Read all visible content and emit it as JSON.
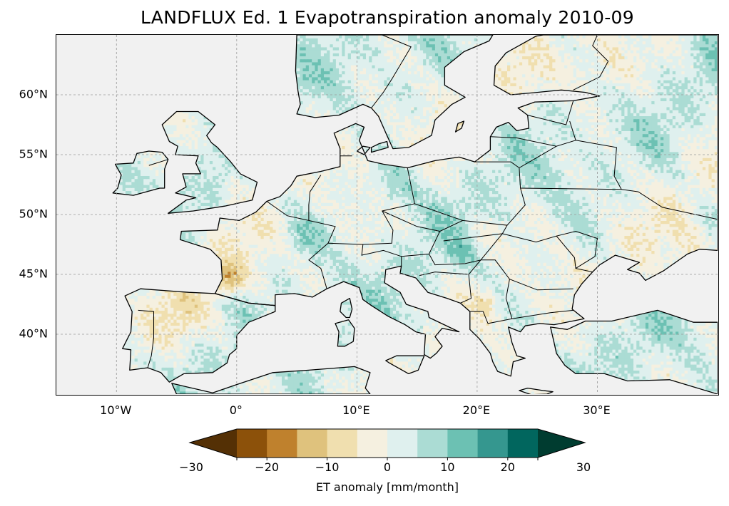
{
  "title": "LANDFLUX Ed. 1 Evapotranspiration anomaly 2010-09",
  "map": {
    "extent": {
      "lon_min": -15,
      "lon_max": 40,
      "lat_min": 35,
      "lat_max": 65
    },
    "lat_ticks": [
      {
        "value": 60,
        "label": "60°N"
      },
      {
        "value": 55,
        "label": "55°N"
      },
      {
        "value": 50,
        "label": "50°N"
      },
      {
        "value": 45,
        "label": "45°N"
      },
      {
        "value": 40,
        "label": "40°N"
      }
    ],
    "lon_ticks": [
      {
        "value": -10,
        "label": "10°W"
      },
      {
        "value": 0,
        "label": "0°"
      },
      {
        "value": 10,
        "label": "10°E"
      },
      {
        "value": 20,
        "label": "20°E"
      },
      {
        "value": 30,
        "label": "30°E"
      }
    ],
    "gridlines": true,
    "ocean_color": "#f1f1f1"
  },
  "colorbar": {
    "label": "ET anomaly [mm/month]",
    "boundaries": [
      -30,
      -25,
      -20,
      -15,
      -10,
      -5,
      0,
      5,
      10,
      15,
      20,
      25,
      30
    ],
    "colors": [
      "#543005",
      "#8c510a",
      "#bf812d",
      "#dfc27d",
      "#f0dfaf",
      "#f5f0e0",
      "#dff0ee",
      "#abdcd4",
      "#6cc1b3",
      "#35978f",
      "#01665e",
      "#003c30"
    ],
    "extend": "both",
    "tick_labels": [
      {
        "value": -30,
        "label": "−30"
      },
      {
        "value": -20,
        "label": "−20"
      },
      {
        "value": -10,
        "label": "−10"
      },
      {
        "value": 0,
        "label": "0"
      },
      {
        "value": 10,
        "label": "10"
      },
      {
        "value": 20,
        "label": "20"
      },
      {
        "value": 30,
        "label": "30"
      }
    ]
  }
}
